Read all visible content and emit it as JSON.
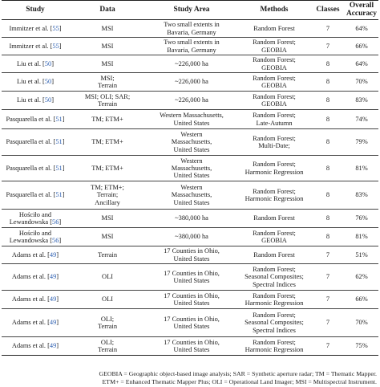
{
  "headers": [
    "Study",
    "Data",
    "Study Area",
    "Methods",
    "Classes",
    "Overall\nAccuracy"
  ],
  "rows": [
    {
      "author": "Immitzer et al. [",
      "ref": "55",
      "data": "MSI",
      "area": "Two small extents in\nBavaria, Germany",
      "methods": "Random Forest",
      "classes": "7",
      "accuracy": "64%",
      "h": 22
    },
    {
      "author": "Immitzer et al. [",
      "ref": "55",
      "data": "MSI",
      "area": "Two small extents in\nBavaria, Germany",
      "methods": "Random Forest;\nGEOBIA",
      "classes": "7",
      "accuracy": "66%",
      "h": 22
    },
    {
      "author": "Liu et al. [",
      "ref": "50",
      "data": "MSI",
      "area": "~226,000 ha",
      "methods": "Random Forest;\nGEOBIA",
      "classes": "8",
      "accuracy": "64%",
      "h": 22
    },
    {
      "author": "Liu et al. [",
      "ref": "50",
      "data": "MSI;\nTerrain",
      "area": "~226,000 ha",
      "methods": "Random Forest;\nGEOBIA",
      "classes": "8",
      "accuracy": "70%",
      "h": 23
    },
    {
      "author": "Liu et al. [",
      "ref": "50",
      "data": "MSI; OLI; SAR;\nTerrain",
      "area": "~226,000 ha",
      "methods": "Random Forest;\nGEOBIA",
      "classes": "8",
      "accuracy": "83%",
      "h": 23
    },
    {
      "author": "Pasquarella et al. [",
      "ref": "51",
      "data": "TM; ETM+",
      "area": "Western Massachusetts,\nUnited States",
      "methods": "Random Forest;\nLate-Autumn",
      "classes": "8",
      "accuracy": "74%",
      "h": 24
    },
    {
      "author": "Pasquarella et al. [",
      "ref": "51",
      "data": "TM; ETM+",
      "area": "Western\nMassachusetts,\nUnited States",
      "methods": "Random Forest;\nMulti-Date;",
      "classes": "8",
      "accuracy": "79%",
      "h": 33
    },
    {
      "author": "Pasquarella et al. [",
      "ref": "51",
      "data": "TM; ETM+",
      "area": "Western\nMassachusetts,\nUnited States",
      "methods": "Random Forest;\nHarmonic Regression",
      "classes": "8",
      "accuracy": "81%",
      "h": 32
    },
    {
      "author": "Pasquarella et al. [",
      "ref": "51",
      "data": "TM; ETM+;\nTerrain;\nAncillary",
      "area": "Western\nMassachusetts,\nUnited States",
      "methods": "Random Forest;\nHarmonic Regression",
      "classes": "8",
      "accuracy": "83%",
      "h": 35
    },
    {
      "author": "Hościło and\nLewandowska [",
      "ref": "56",
      "data": "MSI",
      "area": "~380,000 ha",
      "methods": "Random Forest",
      "classes": "8",
      "accuracy": "76%",
      "h": 23
    },
    {
      "author": "Hościło and\nLewandowska [",
      "ref": "56",
      "data": "MSI",
      "area": "~380,000 ha",
      "methods": "Random Forest;\nGEOBIA",
      "classes": "8",
      "accuracy": "81%",
      "h": 23
    },
    {
      "author": "Adams et al. [",
      "ref": "49",
      "data": "Terrain",
      "area": "17 Counties in Ohio,\nUnited States",
      "methods": "Random Forest",
      "classes": "7",
      "accuracy": "51%",
      "h": 22
    },
    {
      "author": "Adams et al. [",
      "ref": "49",
      "data": "OLI",
      "area": "17 Counties in Ohio,\nUnited States",
      "methods": "Random Forest;\nSeasonal Composites;\nSpectral Indices",
      "classes": "7",
      "accuracy": "62%",
      "h": 33
    },
    {
      "author": "Adams et al. [",
      "ref": "49",
      "data": "OLI",
      "area": "17 Counties in Ohio,\nUnited States",
      "methods": "Random Forest;\nHarmonic Regression",
      "classes": "7",
      "accuracy": "66%",
      "h": 23
    },
    {
      "author": "Adams et al. [",
      "ref": "49",
      "data": "OLI;\nTerrain",
      "area": "17 Counties in Ohio,\nUnited States",
      "methods": "Random Forest;\nSeasonal Composites;\nSpectral Indices",
      "classes": "7",
      "accuracy": "70%",
      "h": 35
    },
    {
      "author": "Adams et al. [",
      "ref": "49",
      "data": "OLI;\nTerrain",
      "area": "17 Counties in Ohio,\nUnited States",
      "methods": "Random Forest;\nHarmonic Regression",
      "classes": "7",
      "accuracy": "75%",
      "h": 23
    }
  ],
  "footnote": {
    "line1": "GEOBIA = Geographic object-based image analysis; SAR = Synthetic aperture radar; TM = Thematic Mapper.",
    "line2": "ETM+ = Enhanced Thematic Mapper Plus; OLI = Operational Land Imager; MSI = Multispectral Instrument."
  }
}
